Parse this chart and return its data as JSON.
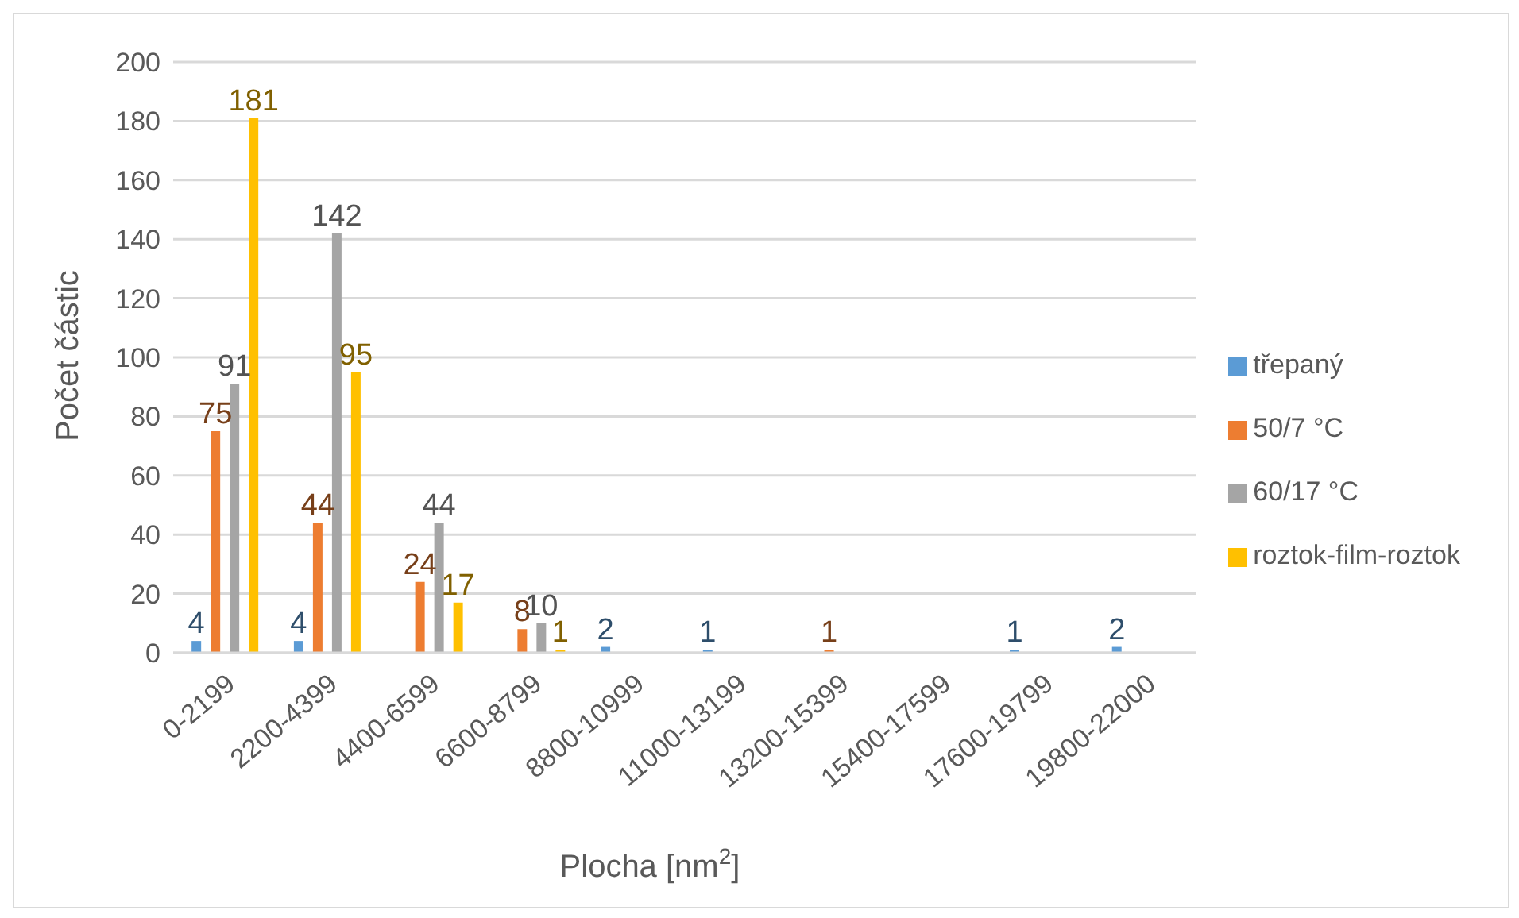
{
  "chart_data": {
    "type": "bar",
    "xlabel": "Plocha [nm$^{2}$]",
    "ylabel": "Počet částic",
    "categories": [
      "0-2199",
      "2200-4399",
      "4400-6599",
      "6600-8799",
      "8800-10999",
      "11000-13199",
      "13200-15399",
      "15400-17599",
      "17600-19799",
      "19800-22000"
    ],
    "series": [
      {
        "name": "třepaný",
        "color": "#5b9bd5",
        "values": [
          4,
          4,
          null,
          null,
          2,
          1,
          null,
          null,
          1,
          2
        ]
      },
      {
        "name": "50/7 °C",
        "color": "#ed7d31",
        "values": [
          75,
          44,
          24,
          8,
          null,
          null,
          1,
          null,
          null,
          null
        ]
      },
      {
        "name": "60/17 °C",
        "color": "#a5a5a5",
        "values": [
          91,
          142,
          44,
          10,
          null,
          null,
          null,
          null,
          null,
          null
        ]
      },
      {
        "name": "roztok-film-roztok",
        "color": "#ffc000",
        "values": [
          181,
          95,
          17,
          1,
          null,
          null,
          null,
          null,
          null,
          null
        ]
      }
    ],
    "ylim": [
      0,
      200
    ],
    "yticks": [
      0,
      20,
      40,
      60,
      80,
      100,
      120,
      140,
      160,
      180,
      200
    ],
    "grid": "y",
    "legend": "right",
    "data_labels": true
  }
}
